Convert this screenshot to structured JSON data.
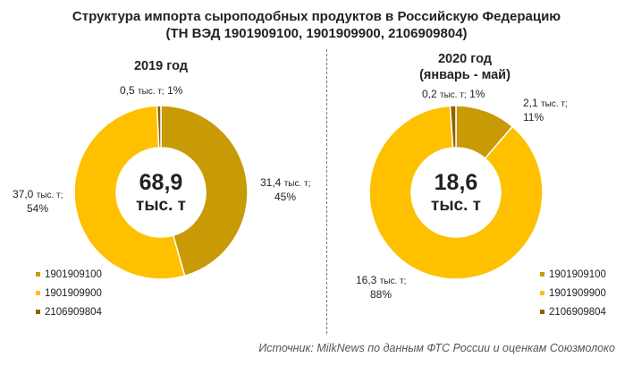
{
  "title": {
    "line1": "Структура импорта сыроподобных продуктов в Российскую Федерацию",
    "line2": "(ТН ВЭД 1901909100, 1901909900, 2106909804)"
  },
  "colors": {
    "1901909100": "#C79A06",
    "1901909900": "#FFC000",
    "2106909804": "#8E6100"
  },
  "chart_data": [
    {
      "type": "pie",
      "title": "2019 год",
      "center_total": "68,9",
      "center_unit": "тыс. т",
      "categories": [
        "1901909100",
        "1901909900",
        "2106909804"
      ],
      "values": [
        31.4,
        37.0,
        0.5
      ],
      "percent": [
        45,
        54,
        1
      ],
      "labels": [
        {
          "value": "31,4",
          "unit": "тыс. т;",
          "pct": "45%"
        },
        {
          "value": "37,0",
          "unit": "тыс. т;",
          "pct": "54%"
        },
        {
          "value": "0,5",
          "unit": "тыс. т;",
          "pct": "1%"
        }
      ],
      "legend": [
        "1901909100",
        "1901909900",
        "2106909804"
      ]
    },
    {
      "type": "pie",
      "title": "2020 год",
      "subtitle": "(январь - май)",
      "center_total": "18,6",
      "center_unit": "тыс. т",
      "categories": [
        "1901909100",
        "1901909900",
        "2106909804"
      ],
      "values": [
        2.1,
        16.3,
        0.2
      ],
      "percent": [
        11,
        88,
        1
      ],
      "labels": [
        {
          "value": "2,1",
          "unit": "тыс. т;",
          "pct": "11%"
        },
        {
          "value": "16,3",
          "unit": "тыс. т;",
          "pct": "88%"
        },
        {
          "value": "0,2",
          "unit": "тыс. т;",
          "pct": "1%"
        }
      ],
      "legend": [
        "1901909100",
        "1901909900",
        "2106909804"
      ]
    }
  ],
  "source": "Источник: MilkNews по данным ФТС России и оценкам Союзмолоко"
}
